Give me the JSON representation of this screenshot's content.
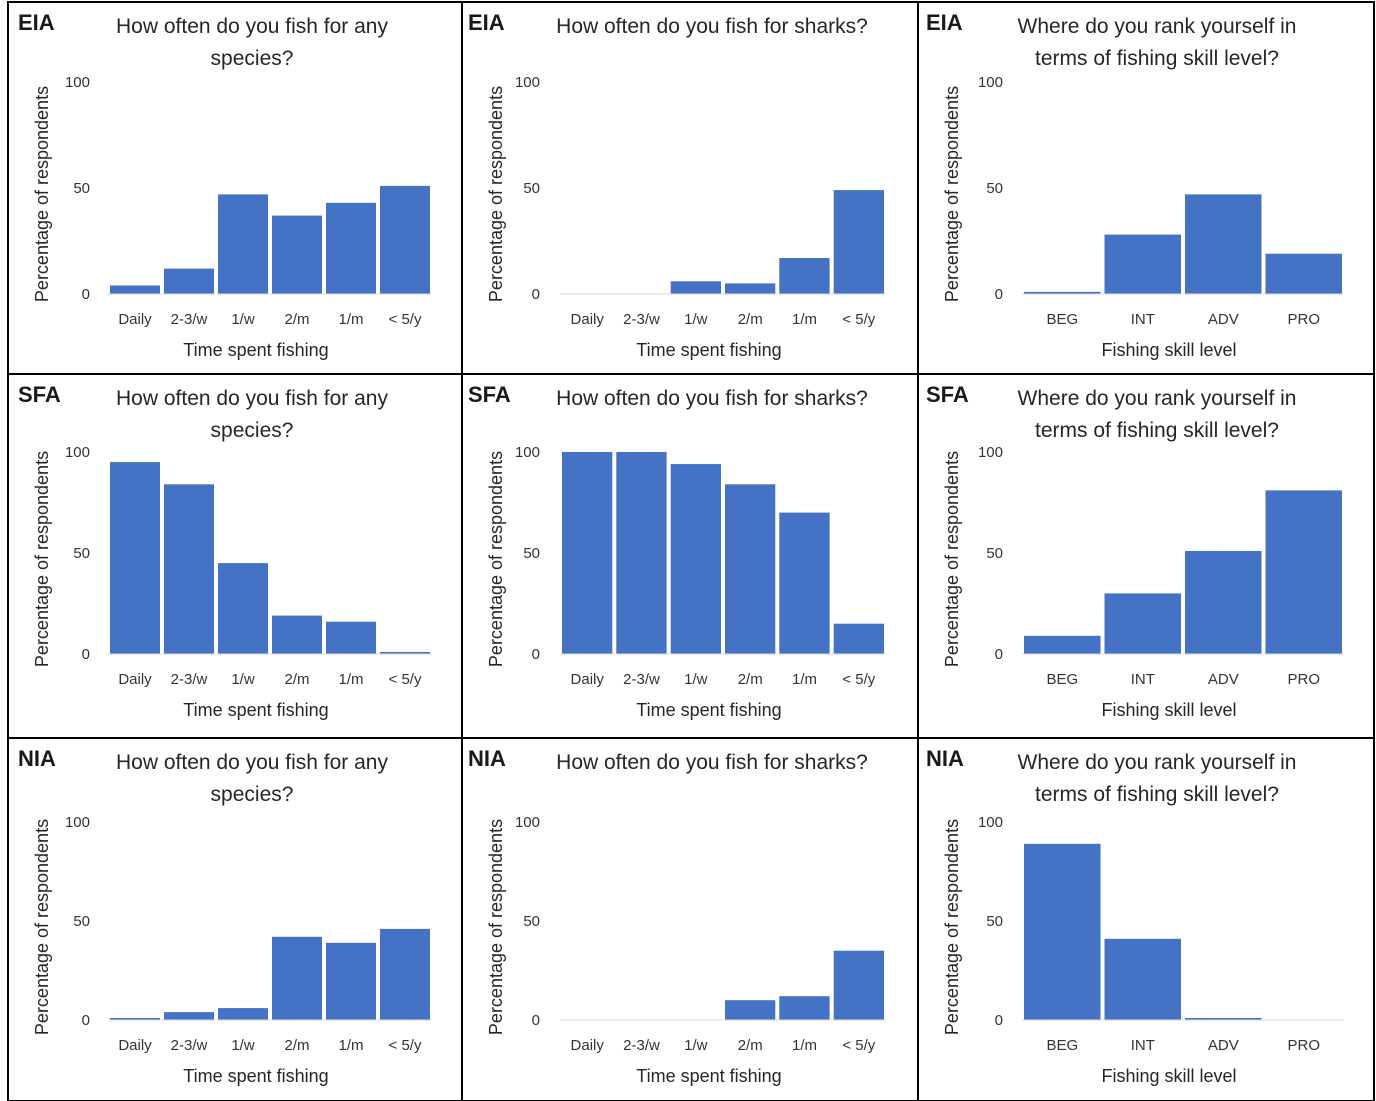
{
  "bar_color": "#4472C4",
  "chart_data": [
    {
      "type": "bar",
      "panel": "EIA",
      "title_lines": [
        "How often do you fish for any",
        "species?"
      ],
      "categories": [
        "Daily",
        "2-3/w",
        "1/w",
        "2/m",
        "1/m",
        "< 5/y"
      ],
      "values": [
        4,
        12,
        47,
        37,
        43,
        51
      ],
      "xlabel": "Time spent fishing",
      "ylabel": "Percentage of respondents",
      "yticks": [
        "0",
        "50",
        "100"
      ],
      "ylim": [
        0,
        100
      ]
    },
    {
      "type": "bar",
      "panel": "EIA",
      "title_lines": [
        "How often do you fish for sharks?"
      ],
      "categories": [
        "Daily",
        "2-3/w",
        "1/w",
        "2/m",
        "1/m",
        "< 5/y"
      ],
      "values": [
        0,
        0,
        6,
        5,
        17,
        49
      ],
      "xlabel": "Time spent fishing",
      "ylabel": "Percentage of respondents",
      "yticks": [
        "0",
        "50",
        "100"
      ],
      "ylim": [
        0,
        100
      ]
    },
    {
      "type": "bar",
      "panel": "EIA",
      "title_lines": [
        "Where do you rank yourself in",
        "terms of fishing skill level?"
      ],
      "categories": [
        "BEG",
        "INT",
        "ADV",
        "PRO"
      ],
      "values": [
        1,
        28,
        47,
        19
      ],
      "xlabel": "Fishing skill level",
      "ylabel": "Percentage of respondents",
      "yticks": [
        "0",
        "50",
        "100"
      ],
      "ylim": [
        0,
        100
      ]
    },
    {
      "type": "bar",
      "panel": "SFA",
      "title_lines": [
        "How often do you fish for any",
        "species?"
      ],
      "categories": [
        "Daily",
        "2-3/w",
        "1/w",
        "2/m",
        "1/m",
        "< 5/y"
      ],
      "values": [
        95,
        84,
        45,
        19,
        16,
        1
      ],
      "xlabel": "Time spent fishing",
      "ylabel": "Percentage of respondents",
      "yticks": [
        "0",
        "50",
        "100"
      ],
      "ylim": [
        0,
        100
      ]
    },
    {
      "type": "bar",
      "panel": "SFA",
      "title_lines": [
        "How often do you fish for sharks?"
      ],
      "categories": [
        "Daily",
        "2-3/w",
        "1/w",
        "2/m",
        "1/m",
        "< 5/y"
      ],
      "values": [
        100,
        100,
        94,
        84,
        70,
        15
      ],
      "xlabel": "Time spent fishing",
      "ylabel": "Percentage of respondents",
      "yticks": [
        "0",
        "50",
        "100"
      ],
      "ylim": [
        0,
        100
      ]
    },
    {
      "type": "bar",
      "panel": "SFA",
      "title_lines": [
        "Where do you rank yourself in",
        "terms of fishing skill level?"
      ],
      "categories": [
        "BEG",
        "INT",
        "ADV",
        "PRO"
      ],
      "values": [
        9,
        30,
        51,
        81
      ],
      "xlabel": "Fishing skill level",
      "ylabel": "Percentage of respondents",
      "yticks": [
        "0",
        "50",
        "100"
      ],
      "ylim": [
        0,
        100
      ]
    },
    {
      "type": "bar",
      "panel": "NIA",
      "title_lines": [
        "How often do you fish for any",
        "species?"
      ],
      "categories": [
        "Daily",
        "2-3/w",
        "1/w",
        "2/m",
        "1/m",
        "< 5/y"
      ],
      "values": [
        1,
        4,
        6,
        42,
        39,
        46
      ],
      "xlabel": "Time spent fishing",
      "ylabel": "Percentage of respondents",
      "yticks": [
        "0",
        "50",
        "100"
      ],
      "ylim": [
        0,
        100
      ]
    },
    {
      "type": "bar",
      "panel": "NIA",
      "title_lines": [
        "How often do you fish for sharks?"
      ],
      "categories": [
        "Daily",
        "2-3/w",
        "1/w",
        "2/m",
        "1/m",
        "< 5/y"
      ],
      "values": [
        0,
        0,
        0,
        10,
        12,
        35
      ],
      "xlabel": "Time spent fishing",
      "ylabel": "Percentage of respondents",
      "yticks": [
        "0",
        "50",
        "100"
      ],
      "ylim": [
        0,
        100
      ]
    },
    {
      "type": "bar",
      "panel": "NIA",
      "title_lines": [
        "Where do you rank yourself in",
        "terms of fishing skill level?"
      ],
      "categories": [
        "BEG",
        "INT",
        "ADV",
        "PRO"
      ],
      "values": [
        89,
        41,
        1,
        0
      ],
      "xlabel": "Fishing skill level",
      "ylabel": "Percentage of respondents",
      "yticks": [
        "0",
        "50",
        "100"
      ],
      "ylim": [
        0,
        100
      ]
    }
  ]
}
